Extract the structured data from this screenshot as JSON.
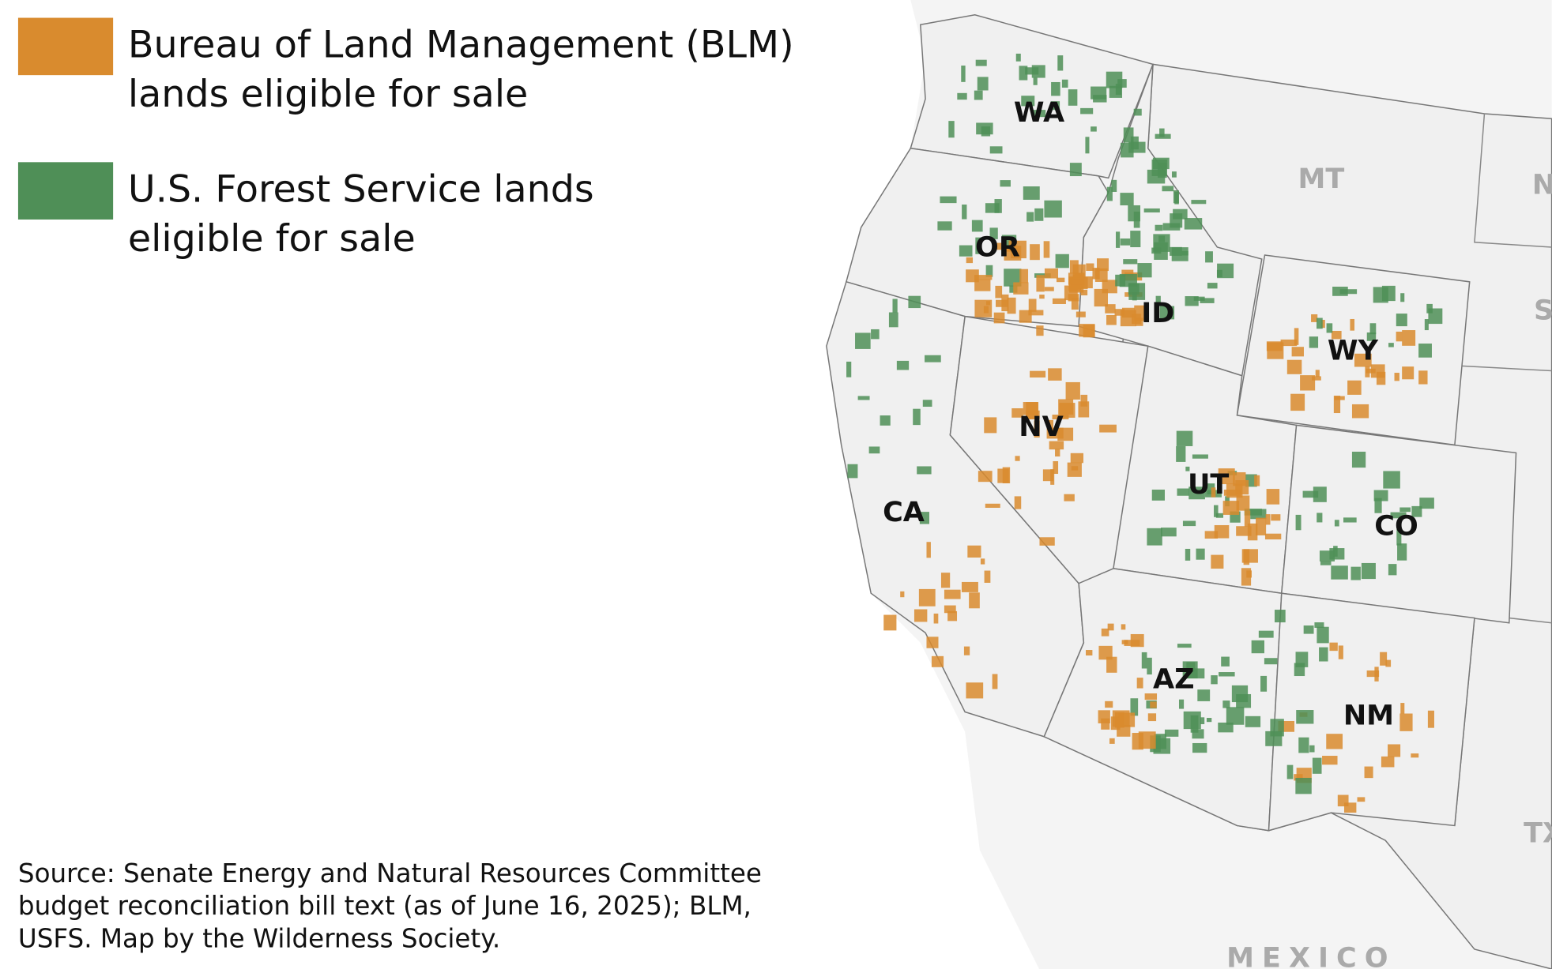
{
  "legend": [
    {
      "lines": [
        "Bureau of Land Management (BLM)",
        "lands eligible for sale"
      ],
      "color": "#d98b2e"
    },
    {
      "lines": [
        "U.S. Forest Service lands",
        "eligible for sale"
      ],
      "color": "#4f8f57"
    }
  ],
  "state_labels": [
    "WA",
    "OR",
    "ID",
    "MT",
    "WY",
    "NV",
    "UT",
    "CA",
    "CO",
    "AZ",
    "NM"
  ],
  "edge_labels": [
    "N",
    "S",
    "TX",
    "MEXICO"
  ],
  "source": [
    "Source: Senate Energy and Natural Resources Committee",
    "budget reconciliation bill text (as of June 16, 2025); BLM,",
    "USFS. Map by the Wilderness Society."
  ]
}
